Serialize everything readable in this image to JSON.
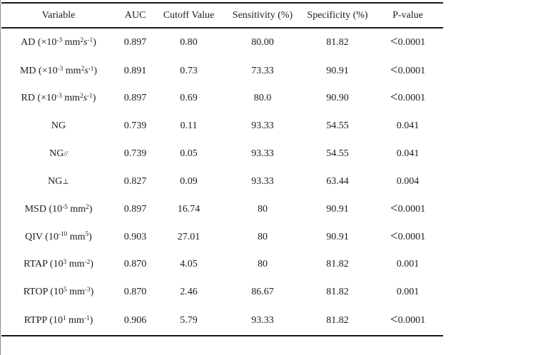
{
  "page": {
    "background": "#ffffff",
    "rule_color": "#1a1a1a",
    "text_color": "#1c1c1c",
    "left_edge_color": "#8c8c8c"
  },
  "table": {
    "columns": [
      {
        "key": "variable",
        "label": "Variable"
      },
      {
        "key": "auc",
        "label": "AUC"
      },
      {
        "key": "cutoff",
        "label": "Cutoff Value"
      },
      {
        "key": "sensitivity",
        "label": "Sensitivity (%)"
      },
      {
        "key": "specificity",
        "label": "Specificity (%)"
      },
      {
        "key": "p_value",
        "label": "P-value"
      }
    ],
    "rows": [
      {
        "variable": [
          "AD (×10",
          {
            "t": "-3",
            "sup": true
          },
          " mm",
          {
            "t": "2",
            "sup": true
          },
          {
            "t": "s",
            "it": true
          },
          {
            "t": "-1",
            "sup": true
          },
          ")"
        ],
        "auc": "0.897",
        "cutoff": "0.80",
        "sensitivity": "80.00",
        "specificity": "81.82",
        "p_value": [
          {
            "t": "<",
            "lt": true
          },
          "0.0001"
        ]
      },
      {
        "variable": [
          "MD (×10",
          {
            "t": "-3",
            "sup": true
          },
          " mm",
          {
            "t": "2",
            "sup": true
          },
          {
            "t": "s",
            "it": true
          },
          {
            "t": "-1",
            "sup": true
          },
          ")"
        ],
        "auc": "0.891",
        "cutoff": "0.73",
        "sensitivity": "73.33",
        "specificity": "90.91",
        "p_value": [
          {
            "t": "<",
            "lt": true
          },
          "0.0001"
        ]
      },
      {
        "variable": [
          "RD (×10",
          {
            "t": "-3",
            "sup": true
          },
          " mm",
          {
            "t": "2",
            "sup": true
          },
          {
            "t": "s",
            "it": true
          },
          {
            "t": "-1",
            "sup": true
          },
          ")"
        ],
        "auc": "0.897",
        "cutoff": "0.69",
        "sensitivity": "80.0",
        "specificity": "90.90",
        "p_value": [
          {
            "t": "<",
            "lt": true
          },
          "0.0001"
        ]
      },
      {
        "variable": [
          "NG"
        ],
        "auc": "0.739",
        "cutoff": "0.11",
        "sensitivity": "93.33",
        "specificity": "54.55",
        "p_value": [
          "0.041"
        ]
      },
      {
        "variable": [
          "NG",
          {
            "t": "//",
            "it": true,
            "small": true
          }
        ],
        "auc": "0.739",
        "cutoff": "0.05",
        "sensitivity": "93.33",
        "specificity": "54.55",
        "p_value": [
          "0.041"
        ]
      },
      {
        "variable": [
          "NG",
          {
            "t": "⊥",
            "small": true
          }
        ],
        "auc": "0.827",
        "cutoff": "0.09",
        "sensitivity": "93.33",
        "specificity": "63.44",
        "p_value": [
          "0.004"
        ]
      },
      {
        "variable": [
          "MSD (10",
          {
            "t": "-5",
            "sup": true
          },
          " mm",
          {
            "t": "2",
            "sup": true
          },
          ")"
        ],
        "auc": "0.897",
        "cutoff": "16.74",
        "sensitivity": "80",
        "specificity": "90.91",
        "p_value": [
          {
            "t": "<",
            "lt": true
          },
          "0.0001"
        ]
      },
      {
        "variable": [
          "QIV (10",
          {
            "t": "-10",
            "sup": true
          },
          " mm",
          {
            "t": "5",
            "sup": true
          },
          ")"
        ],
        "auc": "0.903",
        "cutoff": "27.01",
        "sensitivity": "80",
        "specificity": "90.91",
        "p_value": [
          {
            "t": "<",
            "lt": true
          },
          "0.0001"
        ]
      },
      {
        "variable": [
          "RTAP (10",
          {
            "t": "3",
            "sup": true
          },
          " mm",
          {
            "t": "-2",
            "sup": true
          },
          ")"
        ],
        "auc": "0.870",
        "cutoff": "4.05",
        "sensitivity": "80",
        "specificity": "81.82",
        "p_value": [
          "0.001"
        ]
      },
      {
        "variable": [
          "RTOP (10",
          {
            "t": "5",
            "sup": true
          },
          " mm",
          {
            "t": "-3",
            "sup": true
          },
          ")"
        ],
        "auc": "0.870",
        "cutoff": "2.46",
        "sensitivity": "86.67",
        "specificity": "81.82",
        "p_value": [
          "0.001"
        ]
      },
      {
        "variable": [
          "RTPP (10",
          {
            "t": "1",
            "sup": true
          },
          " mm",
          {
            "t": "-1",
            "sup": true
          },
          ")"
        ],
        "auc": "0.906",
        "cutoff": "5.79",
        "sensitivity": "93.33",
        "specificity": "81.82",
        "p_value": [
          {
            "t": "<",
            "lt": true
          },
          "0.0001"
        ]
      }
    ]
  }
}
